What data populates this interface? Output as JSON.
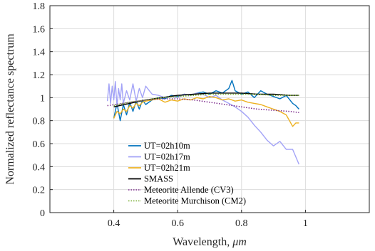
{
  "chart_data": {
    "type": "line",
    "xlabel_text": "Wavelength, ",
    "xlabel_unit": "μm",
    "ylabel": "Normalized reflectance spectrum",
    "xlim": [
      0.2,
      1.2
    ],
    "ylim": [
      0,
      1.8
    ],
    "xticks": [
      0.4,
      0.6,
      0.8,
      1
    ],
    "xtick_labels": [
      "0.4",
      "0.6",
      "0.8",
      "1"
    ],
    "yticks": [
      0,
      0.2,
      0.4,
      0.6,
      0.8,
      1,
      1.2,
      1.4,
      1.6,
      1.8
    ],
    "ytick_labels": [
      "0",
      "0.2",
      "0.4",
      "0.6",
      "0.8",
      "1",
      "1.2",
      "1.4",
      "1.6",
      "1.8"
    ],
    "grid": true,
    "legend_position": "bottom-center",
    "series": [
      {
        "name": "UT=02h10m",
        "color": "#0072BD",
        "style": "solid",
        "x": [
          0.4,
          0.41,
          0.42,
          0.43,
          0.44,
          0.45,
          0.46,
          0.47,
          0.48,
          0.49,
          0.5,
          0.52,
          0.54,
          0.56,
          0.58,
          0.6,
          0.62,
          0.64,
          0.66,
          0.68,
          0.7,
          0.72,
          0.74,
          0.76,
          0.77,
          0.78,
          0.8,
          0.82,
          0.84,
          0.86,
          0.88,
          0.9,
          0.92,
          0.94,
          0.96,
          0.97,
          0.98
        ],
        "y": [
          0.82,
          0.95,
          0.8,
          0.94,
          0.85,
          0.96,
          0.88,
          0.97,
          0.9,
          0.98,
          0.94,
          0.98,
          1.0,
          0.99,
          1.02,
          1.01,
          1.03,
          1.02,
          1.04,
          1.05,
          1.03,
          1.06,
          1.04,
          1.08,
          1.15,
          1.06,
          1.03,
          1.05,
          1.0,
          1.06,
          1.03,
          1.01,
          0.99,
          1.02,
          0.95,
          0.93,
          0.9
        ]
      },
      {
        "name": "UT=02h17m",
        "color": "#A3A3F7",
        "style": "solid",
        "x": [
          0.38,
          0.385,
          0.39,
          0.395,
          0.4,
          0.405,
          0.41,
          0.415,
          0.42,
          0.425,
          0.43,
          0.44,
          0.45,
          0.46,
          0.47,
          0.48,
          0.49,
          0.5,
          0.52,
          0.54,
          0.56,
          0.58,
          0.6,
          0.62,
          0.64,
          0.66,
          0.68,
          0.7,
          0.72,
          0.74,
          0.76,
          0.78,
          0.8,
          0.82,
          0.84,
          0.86,
          0.88,
          0.9,
          0.92,
          0.94,
          0.96,
          0.98
        ],
        "y": [
          0.97,
          1.12,
          0.95,
          1.1,
          0.98,
          1.14,
          0.92,
          1.08,
          0.98,
          1.12,
          0.95,
          1.06,
          0.98,
          1.12,
          0.97,
          1.08,
          1.0,
          1.1,
          1.03,
          1.02,
          1.0,
          1.01,
          1.0,
          1.03,
          1.02,
          1.04,
          1.03,
          1.0,
          1.02,
          0.98,
          0.95,
          0.92,
          0.88,
          0.83,
          0.76,
          0.7,
          0.63,
          0.58,
          0.62,
          0.55,
          0.55,
          0.42
        ]
      },
      {
        "name": "UT=02h21m",
        "color": "#EDB120",
        "style": "solid",
        "x": [
          0.4,
          0.41,
          0.42,
          0.43,
          0.44,
          0.45,
          0.46,
          0.47,
          0.48,
          0.49,
          0.5,
          0.52,
          0.54,
          0.56,
          0.58,
          0.6,
          0.62,
          0.64,
          0.66,
          0.68,
          0.7,
          0.72,
          0.74,
          0.76,
          0.78,
          0.8,
          0.82,
          0.84,
          0.86,
          0.88,
          0.9,
          0.92,
          0.94,
          0.95,
          0.96,
          0.97,
          0.98
        ],
        "y": [
          0.82,
          0.88,
          0.86,
          0.9,
          0.88,
          0.93,
          0.91,
          0.95,
          0.93,
          0.96,
          0.97,
          0.98,
          0.99,
          0.96,
          0.98,
          0.97,
          0.99,
          0.98,
          1.0,
          0.99,
          1.01,
          1.0,
          0.98,
          0.99,
          0.97,
          0.98,
          0.96,
          0.95,
          0.94,
          0.92,
          0.9,
          0.88,
          0.85,
          0.8,
          0.75,
          0.78,
          0.78
        ]
      },
      {
        "name": "SMASS",
        "color": "#000000",
        "style": "solid",
        "x": [
          0.4,
          0.45,
          0.5,
          0.55,
          0.6,
          0.65,
          0.7,
          0.75,
          0.8,
          0.85,
          0.9,
          0.95,
          0.98
        ],
        "y": [
          0.92,
          0.95,
          0.98,
          1.0,
          1.02,
          1.03,
          1.04,
          1.04,
          1.04,
          1.03,
          1.03,
          1.02,
          1.02
        ]
      },
      {
        "name": "Meteorite Allende (CV3)",
        "color": "#7E2F8E",
        "style": "dotted",
        "x": [
          0.38,
          0.45,
          0.5,
          0.55,
          0.6,
          0.65,
          0.7,
          0.75,
          0.8,
          0.85,
          0.9,
          0.95,
          0.98
        ],
        "y": [
          0.93,
          0.96,
          0.98,
          0.99,
          0.99,
          0.98,
          0.96,
          0.94,
          0.92,
          0.9,
          0.89,
          0.88,
          0.87
        ]
      },
      {
        "name": "Meteorite Murchison (CM2)",
        "color": "#77AC30",
        "style": "dotted",
        "x": [
          0.4,
          0.45,
          0.5,
          0.55,
          0.6,
          0.65,
          0.7,
          0.75,
          0.8,
          0.85,
          0.9,
          0.95,
          0.98
        ],
        "y": [
          0.93,
          0.96,
          0.98,
          1.0,
          1.01,
          1.02,
          1.03,
          1.03,
          1.03,
          1.03,
          1.02,
          1.02,
          1.02
        ]
      }
    ]
  }
}
